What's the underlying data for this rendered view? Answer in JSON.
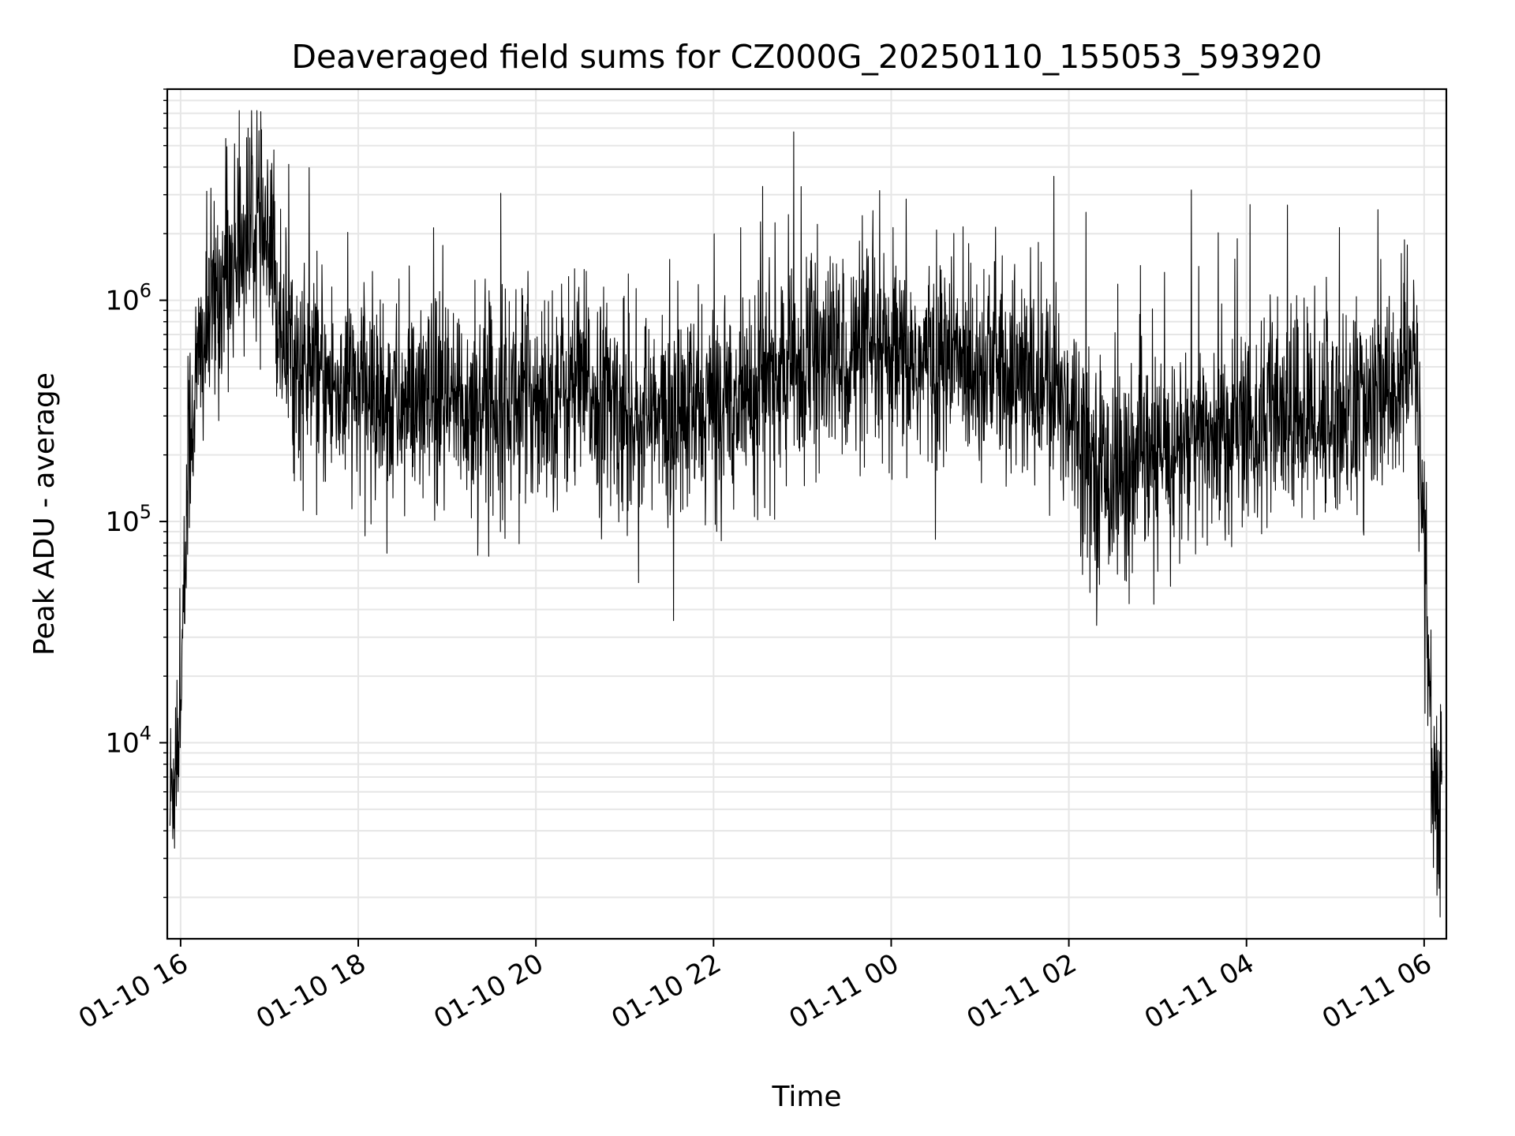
{
  "chart_data": {
    "type": "line",
    "title": "Deaveraged field sums for CZ000G_20250110_155053_593920",
    "xlabel": "Time",
    "ylabel": "Peak ADU - average",
    "x_ticks": [
      "01-10 16",
      "01-10 18",
      "01-10 20",
      "01-10 22",
      "01-11 00",
      "01-11 02",
      "01-11 04",
      "01-11 06"
    ],
    "x_tick_hours": [
      0,
      2,
      4,
      6,
      8,
      10,
      12,
      14
    ],
    "x_range_hours": [
      -0.15,
      14.25
    ],
    "y_scale": "log",
    "y_ticks": [
      {
        "base": "10",
        "exp": "4",
        "value": 10000
      },
      {
        "base": "10",
        "exp": "5",
        "value": 100000
      },
      {
        "base": "10",
        "exp": "6",
        "value": 1000000
      }
    ],
    "ylim": [
      1300,
      9000000
    ],
    "grid": true,
    "line_color": "#000000",
    "grid_color": "#e6e6e6",
    "series": [
      {
        "hours": [
          -0.12,
          0.0,
          0.1,
          0.2,
          0.35,
          0.5,
          0.7,
          0.8,
          0.9,
          1.0,
          1.1,
          1.3,
          1.5,
          1.7,
          2.0,
          2.5,
          3.0,
          3.5,
          4.0,
          4.5,
          5.0,
          5.5,
          6.0,
          6.5,
          7.0,
          7.5,
          8.0,
          8.5,
          9.0,
          9.5,
          10.0,
          10.3,
          10.6,
          10.9,
          11.2,
          11.6,
          12.0,
          12.5,
          13.0,
          13.5,
          13.9,
          14.0,
          14.1,
          14.2
        ],
        "level": [
          5000,
          15000,
          250000,
          500000,
          900000,
          1300000,
          1800000,
          2200000,
          2000000,
          1500000,
          900000,
          500000,
          450000,
          400000,
          380000,
          330000,
          320000,
          350000,
          370000,
          400000,
          310000,
          280000,
          330000,
          420000,
          500000,
          560000,
          500000,
          520000,
          550000,
          430000,
          350000,
          180000,
          160000,
          180000,
          210000,
          240000,
          270000,
          290000,
          310000,
          330000,
          520000,
          100000,
          5000,
          4000
        ]
      }
    ]
  }
}
